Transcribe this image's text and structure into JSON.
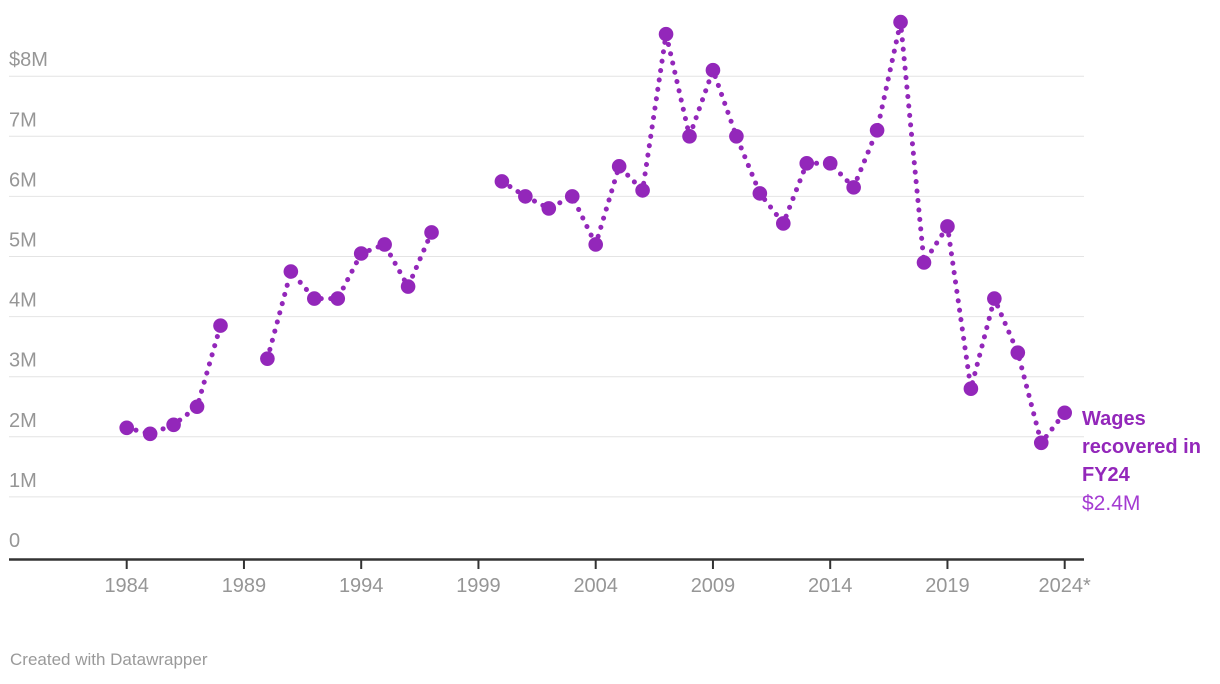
{
  "chart_data": {
    "type": "line",
    "style": "dotted-line-with-points",
    "title": "",
    "units": "$ millions",
    "x": [
      1984,
      1985,
      1986,
      1987,
      1988,
      1989,
      1990,
      1991,
      1992,
      1993,
      1994,
      1995,
      1996,
      1997,
      1998,
      1999,
      2000,
      2001,
      2002,
      2003,
      2004,
      2005,
      2006,
      2007,
      2008,
      2009,
      2010,
      2011,
      2012,
      2013,
      2014,
      2015,
      2016,
      2017,
      2018,
      2019,
      2020,
      2021,
      2022,
      2023,
      2024
    ],
    "series": [
      {
        "name": "Wages recovered",
        "values": [
          2.15,
          2.05,
          2.2,
          2.5,
          3.85,
          null,
          3.3,
          4.75,
          4.3,
          4.3,
          5.05,
          5.2,
          4.5,
          5.4,
          null,
          null,
          6.25,
          6.0,
          5.8,
          6.0,
          5.2,
          6.5,
          6.1,
          8.7,
          7.0,
          8.1,
          7.0,
          6.05,
          5.55,
          6.55,
          6.55,
          6.15,
          7.1,
          8.9,
          4.9,
          5.5,
          2.8,
          4.3,
          3.4,
          1.9,
          2.4
        ]
      }
    ],
    "missing_years": [
      1989,
      1998,
      1999
    ],
    "x_ticks": [
      1984,
      1989,
      1994,
      1999,
      2004,
      2009,
      2014,
      2019,
      2024
    ],
    "x_tick_labels": [
      "1984",
      "1989",
      "1994",
      "1999",
      "2004",
      "2009",
      "2014",
      "2019",
      "2024*"
    ],
    "y_ticks": [
      8,
      7,
      6,
      5,
      4,
      3,
      2,
      1,
      0
    ],
    "y_tick_labels": [
      "$8M",
      "7M",
      "6M",
      "5M",
      "4M",
      "3M",
      "2M",
      "1M",
      "0"
    ],
    "ylim": [
      0,
      9.1
    ],
    "grid": "horizontal",
    "legend": "none",
    "line_color": "#9327BA",
    "point_color": "#9327BA",
    "grid_color": "#E4E4E4",
    "axis_color": "#333333",
    "tick_label_color": "#969696"
  },
  "annotation": {
    "label": "Wages recovered in FY24",
    "value": "$2.4M",
    "label_color": "#9327BA",
    "value_color": "#A43BD2"
  },
  "footer": {
    "attribution": "Created with Datawrapper"
  }
}
